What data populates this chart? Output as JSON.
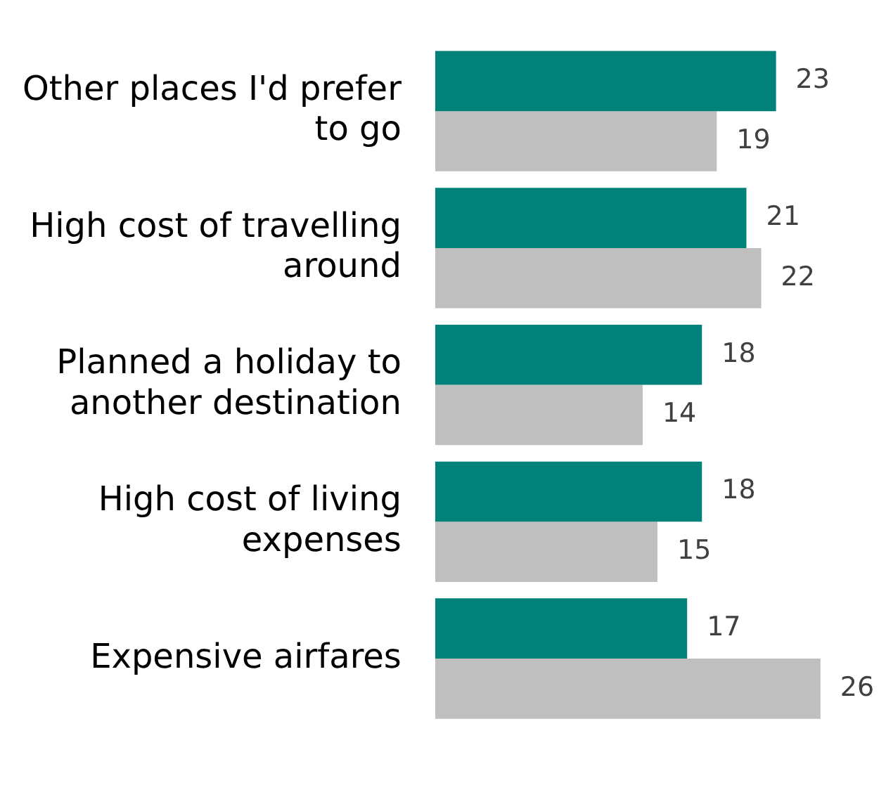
{
  "chart_data": {
    "type": "bar",
    "orientation": "horizontal",
    "categories": [
      "Other places I'd prefer to go",
      "High cost of travelling around",
      "Planned a holiday to another destination",
      "High cost of living expenses",
      "Expensive airfares"
    ],
    "series": [
      {
        "color": "#00827b",
        "values": [
          23,
          21,
          18,
          18,
          17
        ]
      },
      {
        "color": "#bfbfbf",
        "values": [
          19,
          22,
          14,
          15,
          26
        ]
      }
    ],
    "data_labels": true,
    "legend": false,
    "tick_labels": "y"
  }
}
